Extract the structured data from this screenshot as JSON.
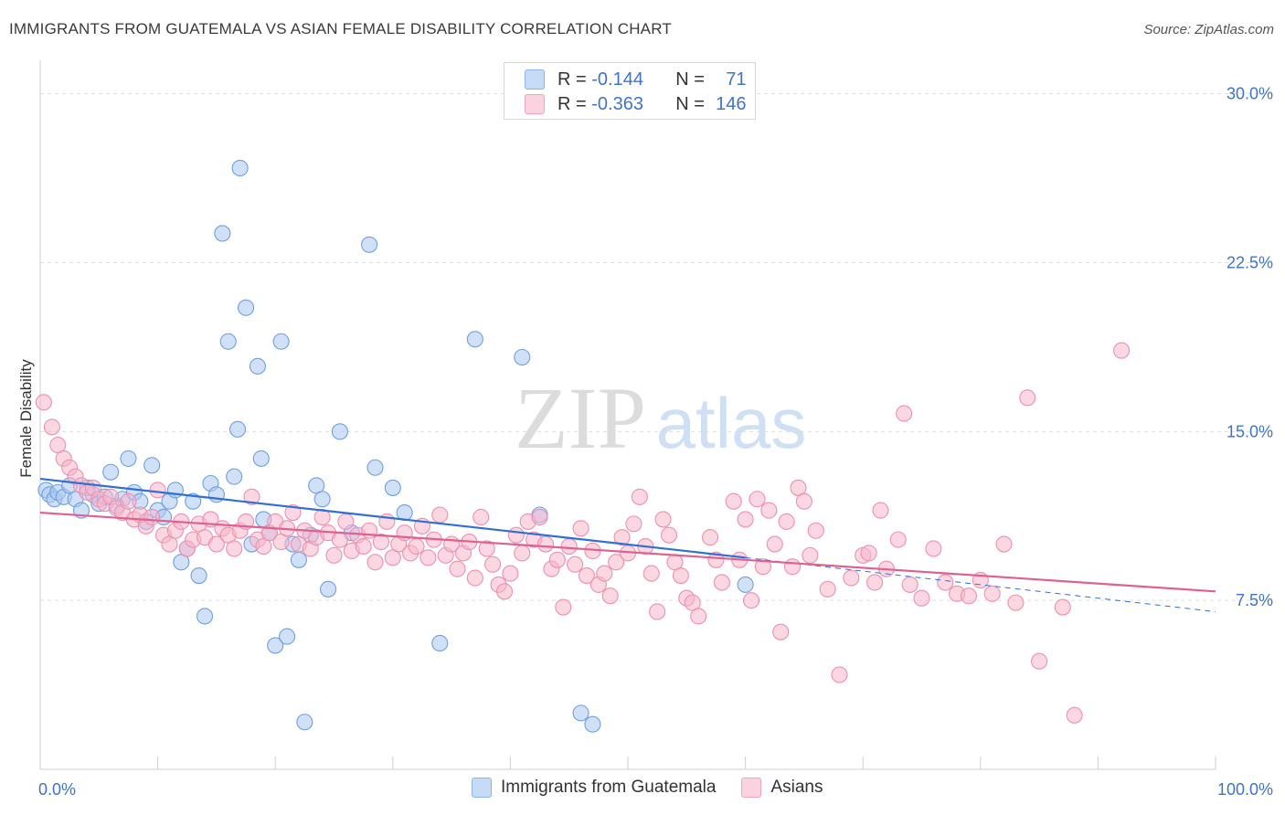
{
  "header": {
    "title": "IMMIGRANTS FROM GUATEMALA VS ASIAN FEMALE DISABILITY CORRELATION CHART",
    "source": "Source: ZipAtlas.com"
  },
  "watermark": {
    "zip": "ZIP",
    "atlas": "atlas"
  },
  "legend": {
    "rows": [
      {
        "r_label": "R = ",
        "r_value": "-0.144",
        "n_label": "N = ",
        "n_value": "71",
        "color": "#a9c8f0"
      },
      {
        "r_label": "R = ",
        "r_value": "-0.363",
        "n_label": "N = ",
        "n_value": "146",
        "color": "#f7b6cb"
      }
    ]
  },
  "chart_data": {
    "type": "scatter",
    "ylabel": "Female Disability",
    "xlim": [
      0,
      100
    ],
    "ylim": [
      0,
      31
    ],
    "x_tick_labels": [
      "0.0%",
      "100.0%"
    ],
    "y_ticks": [
      {
        "value": 7.5,
        "label": "7.5%"
      },
      {
        "value": 15.0,
        "label": "15.0%"
      },
      {
        "value": 22.5,
        "label": "22.5%"
      },
      {
        "value": 30.0,
        "label": "30.0%"
      }
    ],
    "grid": true,
    "legend_position": "top-center",
    "series": [
      {
        "name": "Immigrants from Guatemala",
        "color": "#6f9fe0",
        "fill": "#a9c8f0",
        "trend": {
          "x": [
            0,
            60
          ],
          "y": [
            12.9,
            9.4
          ],
          "dashed_extension": {
            "x": [
              60,
              100
            ],
            "y": [
              9.4,
              7.0
            ]
          },
          "color": "#2f6fd6"
        },
        "points": [
          [
            0.5,
            12.4
          ],
          [
            0.8,
            12.2
          ],
          [
            1.2,
            12.0
          ],
          [
            1.5,
            12.3
          ],
          [
            2,
            12.1
          ],
          [
            2.5,
            12.6
          ],
          [
            3,
            12.0
          ],
          [
            3.5,
            11.5
          ],
          [
            4,
            12.5
          ],
          [
            4.5,
            12.2
          ],
          [
            5,
            11.8
          ],
          [
            5.5,
            12.1
          ],
          [
            6,
            13.2
          ],
          [
            6.5,
            11.7
          ],
          [
            7,
            12.0
          ],
          [
            7.5,
            13.8
          ],
          [
            8,
            12.3
          ],
          [
            8.5,
            11.9
          ],
          [
            9,
            11.0
          ],
          [
            9.5,
            13.5
          ],
          [
            10,
            11.5
          ],
          [
            10.5,
            11.2
          ],
          [
            11,
            11.9
          ],
          [
            11.5,
            12.4
          ],
          [
            12,
            9.2
          ],
          [
            12.5,
            9.8
          ],
          [
            13,
            11.9
          ],
          [
            13.5,
            8.6
          ],
          [
            14,
            6.8
          ],
          [
            14.5,
            12.7
          ],
          [
            15,
            12.2
          ],
          [
            15.5,
            23.8
          ],
          [
            16,
            19.0
          ],
          [
            16.5,
            13.0
          ],
          [
            16.8,
            15.1
          ],
          [
            17,
            26.7
          ],
          [
            17.5,
            20.5
          ],
          [
            18,
            10.0
          ],
          [
            18.5,
            17.9
          ],
          [
            18.8,
            13.8
          ],
          [
            19,
            11.1
          ],
          [
            19.5,
            10.5
          ],
          [
            20,
            5.5
          ],
          [
            20.5,
            19.0
          ],
          [
            21,
            5.9
          ],
          [
            21.5,
            10.0
          ],
          [
            22,
            9.3
          ],
          [
            22.5,
            2.1
          ],
          [
            23,
            10.4
          ],
          [
            23.5,
            12.6
          ],
          [
            24,
            12.0
          ],
          [
            24.5,
            8.0
          ],
          [
            25.5,
            15.0
          ],
          [
            26.5,
            10.5
          ],
          [
            28,
            23.3
          ],
          [
            28.5,
            13.4
          ],
          [
            30,
            12.5
          ],
          [
            31,
            11.4
          ],
          [
            34,
            5.6
          ],
          [
            37,
            19.1
          ],
          [
            41,
            18.3
          ],
          [
            42.5,
            11.3
          ],
          [
            46,
            2.5
          ],
          [
            47,
            2.0
          ],
          [
            60,
            8.2
          ]
        ]
      },
      {
        "name": "Asians",
        "color": "#ee8fb0",
        "fill": "#f7b6cb",
        "trend": {
          "x": [
            0,
            100
          ],
          "y": [
            11.4,
            7.9
          ],
          "color": "#e0608f"
        },
        "points": [
          [
            0.3,
            16.3
          ],
          [
            1,
            15.2
          ],
          [
            1.5,
            14.4
          ],
          [
            2,
            13.8
          ],
          [
            2.5,
            13.4
          ],
          [
            3,
            13.0
          ],
          [
            3.5,
            12.6
          ],
          [
            4,
            12.3
          ],
          [
            4.5,
            12.5
          ],
          [
            5,
            12.0
          ],
          [
            5.5,
            11.8
          ],
          [
            6,
            12.1
          ],
          [
            6.5,
            11.6
          ],
          [
            7,
            11.4
          ],
          [
            7.5,
            11.9
          ],
          [
            8,
            11.1
          ],
          [
            8.5,
            11.3
          ],
          [
            9,
            10.8
          ],
          [
            9.5,
            11.2
          ],
          [
            10,
            12.4
          ],
          [
            10.5,
            10.4
          ],
          [
            11,
            10.0
          ],
          [
            11.5,
            10.6
          ],
          [
            12,
            11.0
          ],
          [
            12.5,
            9.8
          ],
          [
            13,
            10.2
          ],
          [
            13.5,
            10.9
          ],
          [
            14,
            10.3
          ],
          [
            14.5,
            11.1
          ],
          [
            15,
            10.0
          ],
          [
            15.5,
            10.7
          ],
          [
            16,
            10.4
          ],
          [
            16.5,
            9.8
          ],
          [
            17,
            10.6
          ],
          [
            17.5,
            11.0
          ],
          [
            18,
            12.1
          ],
          [
            18.5,
            10.2
          ],
          [
            19,
            9.9
          ],
          [
            19.5,
            10.5
          ],
          [
            20,
            11.0
          ],
          [
            20.5,
            10.1
          ],
          [
            21,
            10.7
          ],
          [
            21.5,
            11.4
          ],
          [
            22,
            10.0
          ],
          [
            22.5,
            10.6
          ],
          [
            23,
            9.8
          ],
          [
            23.5,
            10.3
          ],
          [
            24,
            11.2
          ],
          [
            24.5,
            10.5
          ],
          [
            25,
            9.5
          ],
          [
            25.5,
            10.2
          ],
          [
            26,
            11.0
          ],
          [
            26.5,
            9.7
          ],
          [
            27,
            10.4
          ],
          [
            27.5,
            9.9
          ],
          [
            28,
            10.6
          ],
          [
            28.5,
            9.2
          ],
          [
            29,
            10.1
          ],
          [
            29.5,
            11.0
          ],
          [
            30,
            9.4
          ],
          [
            30.5,
            10.0
          ],
          [
            31,
            10.5
          ],
          [
            31.5,
            9.6
          ],
          [
            32,
            9.9
          ],
          [
            32.5,
            10.8
          ],
          [
            33,
            9.4
          ],
          [
            33.5,
            10.2
          ],
          [
            34,
            11.3
          ],
          [
            34.5,
            9.5
          ],
          [
            35,
            10.0
          ],
          [
            35.5,
            8.9
          ],
          [
            36,
            9.6
          ],
          [
            36.5,
            10.1
          ],
          [
            37,
            8.5
          ],
          [
            37.5,
            11.2
          ],
          [
            38,
            9.8
          ],
          [
            38.5,
            9.1
          ],
          [
            39,
            8.2
          ],
          [
            39.5,
            7.9
          ],
          [
            40,
            8.7
          ],
          [
            40.5,
            10.4
          ],
          [
            41,
            9.6
          ],
          [
            41.5,
            11.0
          ],
          [
            42,
            10.2
          ],
          [
            42.5,
            11.2
          ],
          [
            43,
            10.0
          ],
          [
            43.5,
            8.9
          ],
          [
            44,
            9.3
          ],
          [
            44.5,
            7.2
          ],
          [
            45,
            9.9
          ],
          [
            45.5,
            9.1
          ],
          [
            46,
            10.7
          ],
          [
            46.5,
            8.6
          ],
          [
            47,
            9.7
          ],
          [
            47.5,
            8.2
          ],
          [
            48,
            8.7
          ],
          [
            48.5,
            7.7
          ],
          [
            49,
            9.2
          ],
          [
            49.5,
            10.3
          ],
          [
            50,
            9.6
          ],
          [
            50.5,
            10.9
          ],
          [
            51,
            12.1
          ],
          [
            51.5,
            9.9
          ],
          [
            52,
            8.7
          ],
          [
            52.5,
            7.0
          ],
          [
            53,
            11.1
          ],
          [
            53.5,
            10.4
          ],
          [
            54,
            9.2
          ],
          [
            54.5,
            8.6
          ],
          [
            55,
            7.6
          ],
          [
            55.5,
            7.4
          ],
          [
            56,
            6.8
          ],
          [
            57,
            10.3
          ],
          [
            57.5,
            9.3
          ],
          [
            58,
            8.3
          ],
          [
            59,
            11.9
          ],
          [
            59.5,
            9.3
          ],
          [
            60,
            11.1
          ],
          [
            60.5,
            7.5
          ],
          [
            61,
            12.0
          ],
          [
            61.5,
            9.0
          ],
          [
            62,
            11.5
          ],
          [
            62.5,
            10.0
          ],
          [
            63,
            6.1
          ],
          [
            63.5,
            11.0
          ],
          [
            64,
            9.0
          ],
          [
            64.5,
            12.5
          ],
          [
            65,
            11.9
          ],
          [
            65.5,
            9.5
          ],
          [
            66,
            10.6
          ],
          [
            67,
            8.0
          ],
          [
            68,
            4.2
          ],
          [
            69,
            8.5
          ],
          [
            70,
            9.5
          ],
          [
            70.5,
            9.6
          ],
          [
            71,
            8.3
          ],
          [
            71.5,
            11.5
          ],
          [
            72,
            8.9
          ],
          [
            73,
            10.2
          ],
          [
            73.5,
            15.8
          ],
          [
            74,
            8.2
          ],
          [
            75,
            7.6
          ],
          [
            76,
            9.8
          ],
          [
            77,
            8.3
          ],
          [
            78,
            7.8
          ],
          [
            79,
            7.7
          ],
          [
            80,
            8.4
          ],
          [
            81,
            7.8
          ],
          [
            82,
            10.0
          ],
          [
            83,
            7.4
          ],
          [
            84,
            16.5
          ],
          [
            85,
            4.8
          ],
          [
            87,
            7.2
          ],
          [
            88,
            2.4
          ],
          [
            92,
            18.6
          ]
        ]
      }
    ]
  }
}
